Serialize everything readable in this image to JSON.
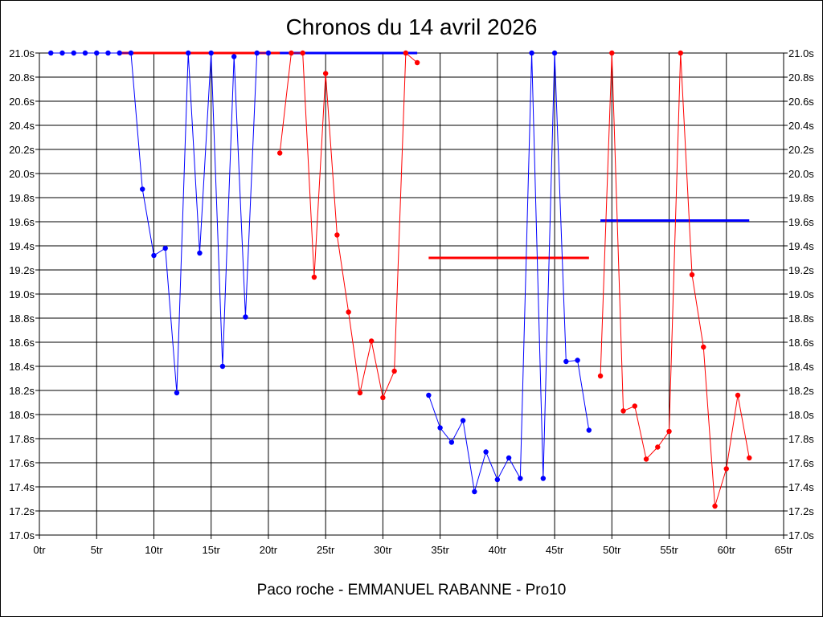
{
  "chart_data": {
    "type": "line",
    "title": "Chronos du 14 avril 2026",
    "xlabel": "Paco roche - EMMANUEL RABANNE - Pro10",
    "ylabel": "",
    "xlim": [
      0,
      65
    ],
    "ylim": [
      17.0,
      21.0
    ],
    "x_ticks": [
      "0tr",
      "5tr",
      "10tr",
      "15tr",
      "20tr",
      "25tr",
      "30tr",
      "35tr",
      "40tr",
      "45tr",
      "50tr",
      "55tr",
      "60tr",
      "65tr"
    ],
    "y_ticks": [
      "21.0s",
      "20.8s",
      "20.6s",
      "20.4s",
      "20.2s",
      "20.0s",
      "19.8s",
      "19.6s",
      "19.4s",
      "19.2s",
      "19.0s",
      "18.8s",
      "18.6s",
      "18.4s",
      "18.2s",
      "18.0s",
      "17.8s",
      "17.6s",
      "17.4s",
      "17.2s",
      "17.0s"
    ],
    "grid": true,
    "legend": "none",
    "series": [
      {
        "color": "#0000ff",
        "x": [
          1,
          2,
          3,
          4,
          5,
          6,
          7,
          8,
          9,
          10,
          11,
          12,
          13,
          14,
          15,
          16,
          17,
          18,
          19,
          20
        ],
        "y": [
          21.0,
          21.0,
          21.0,
          21.0,
          21.0,
          21.0,
          21.0,
          21.0,
          19.87,
          19.32,
          19.38,
          18.18,
          21.0,
          19.34,
          21.0,
          18.4,
          20.97,
          18.81,
          21.0,
          21.0
        ]
      },
      {
        "color": "#ff0000",
        "x": [
          21,
          22,
          23,
          24,
          25,
          26,
          27,
          28,
          29,
          30,
          31,
          32,
          33
        ],
        "y": [
          20.17,
          21.0,
          21.0,
          19.14,
          20.83,
          19.49,
          18.85,
          18.18,
          18.61,
          18.14,
          18.36,
          21.0,
          20.92
        ]
      },
      {
        "color": "#0000ff",
        "x": [
          34,
          35,
          36,
          37,
          38,
          39,
          40,
          41,
          42,
          43,
          44,
          45,
          46,
          47,
          48
        ],
        "y": [
          18.16,
          17.89,
          17.77,
          17.95,
          17.36,
          17.69,
          17.46,
          17.64,
          17.47,
          21.0,
          17.47,
          21.0,
          18.44,
          18.45,
          17.87
        ]
      },
      {
        "color": "#ff0000",
        "x": [
          49,
          50,
          51,
          52,
          53,
          54,
          55,
          56,
          57,
          58,
          59,
          60,
          61,
          62
        ],
        "y": [
          18.32,
          21.0,
          18.03,
          18.07,
          17.63,
          17.73,
          17.86,
          21.0,
          19.16,
          18.56,
          17.24,
          17.55,
          18.16,
          17.64
        ]
      }
    ],
    "reference_lines": [
      {
        "color": "#ff0000",
        "x_start": 7,
        "x_end": 23,
        "y": 21.0
      },
      {
        "color": "#0000ff",
        "x_start": 21,
        "x_end": 33,
        "y": 21.0
      },
      {
        "color": "#ff0000",
        "x_start": 34,
        "x_end": 48,
        "y": 19.3
      },
      {
        "color": "#0000ff",
        "x_start": 49,
        "x_end": 62,
        "y": 19.61
      }
    ]
  }
}
